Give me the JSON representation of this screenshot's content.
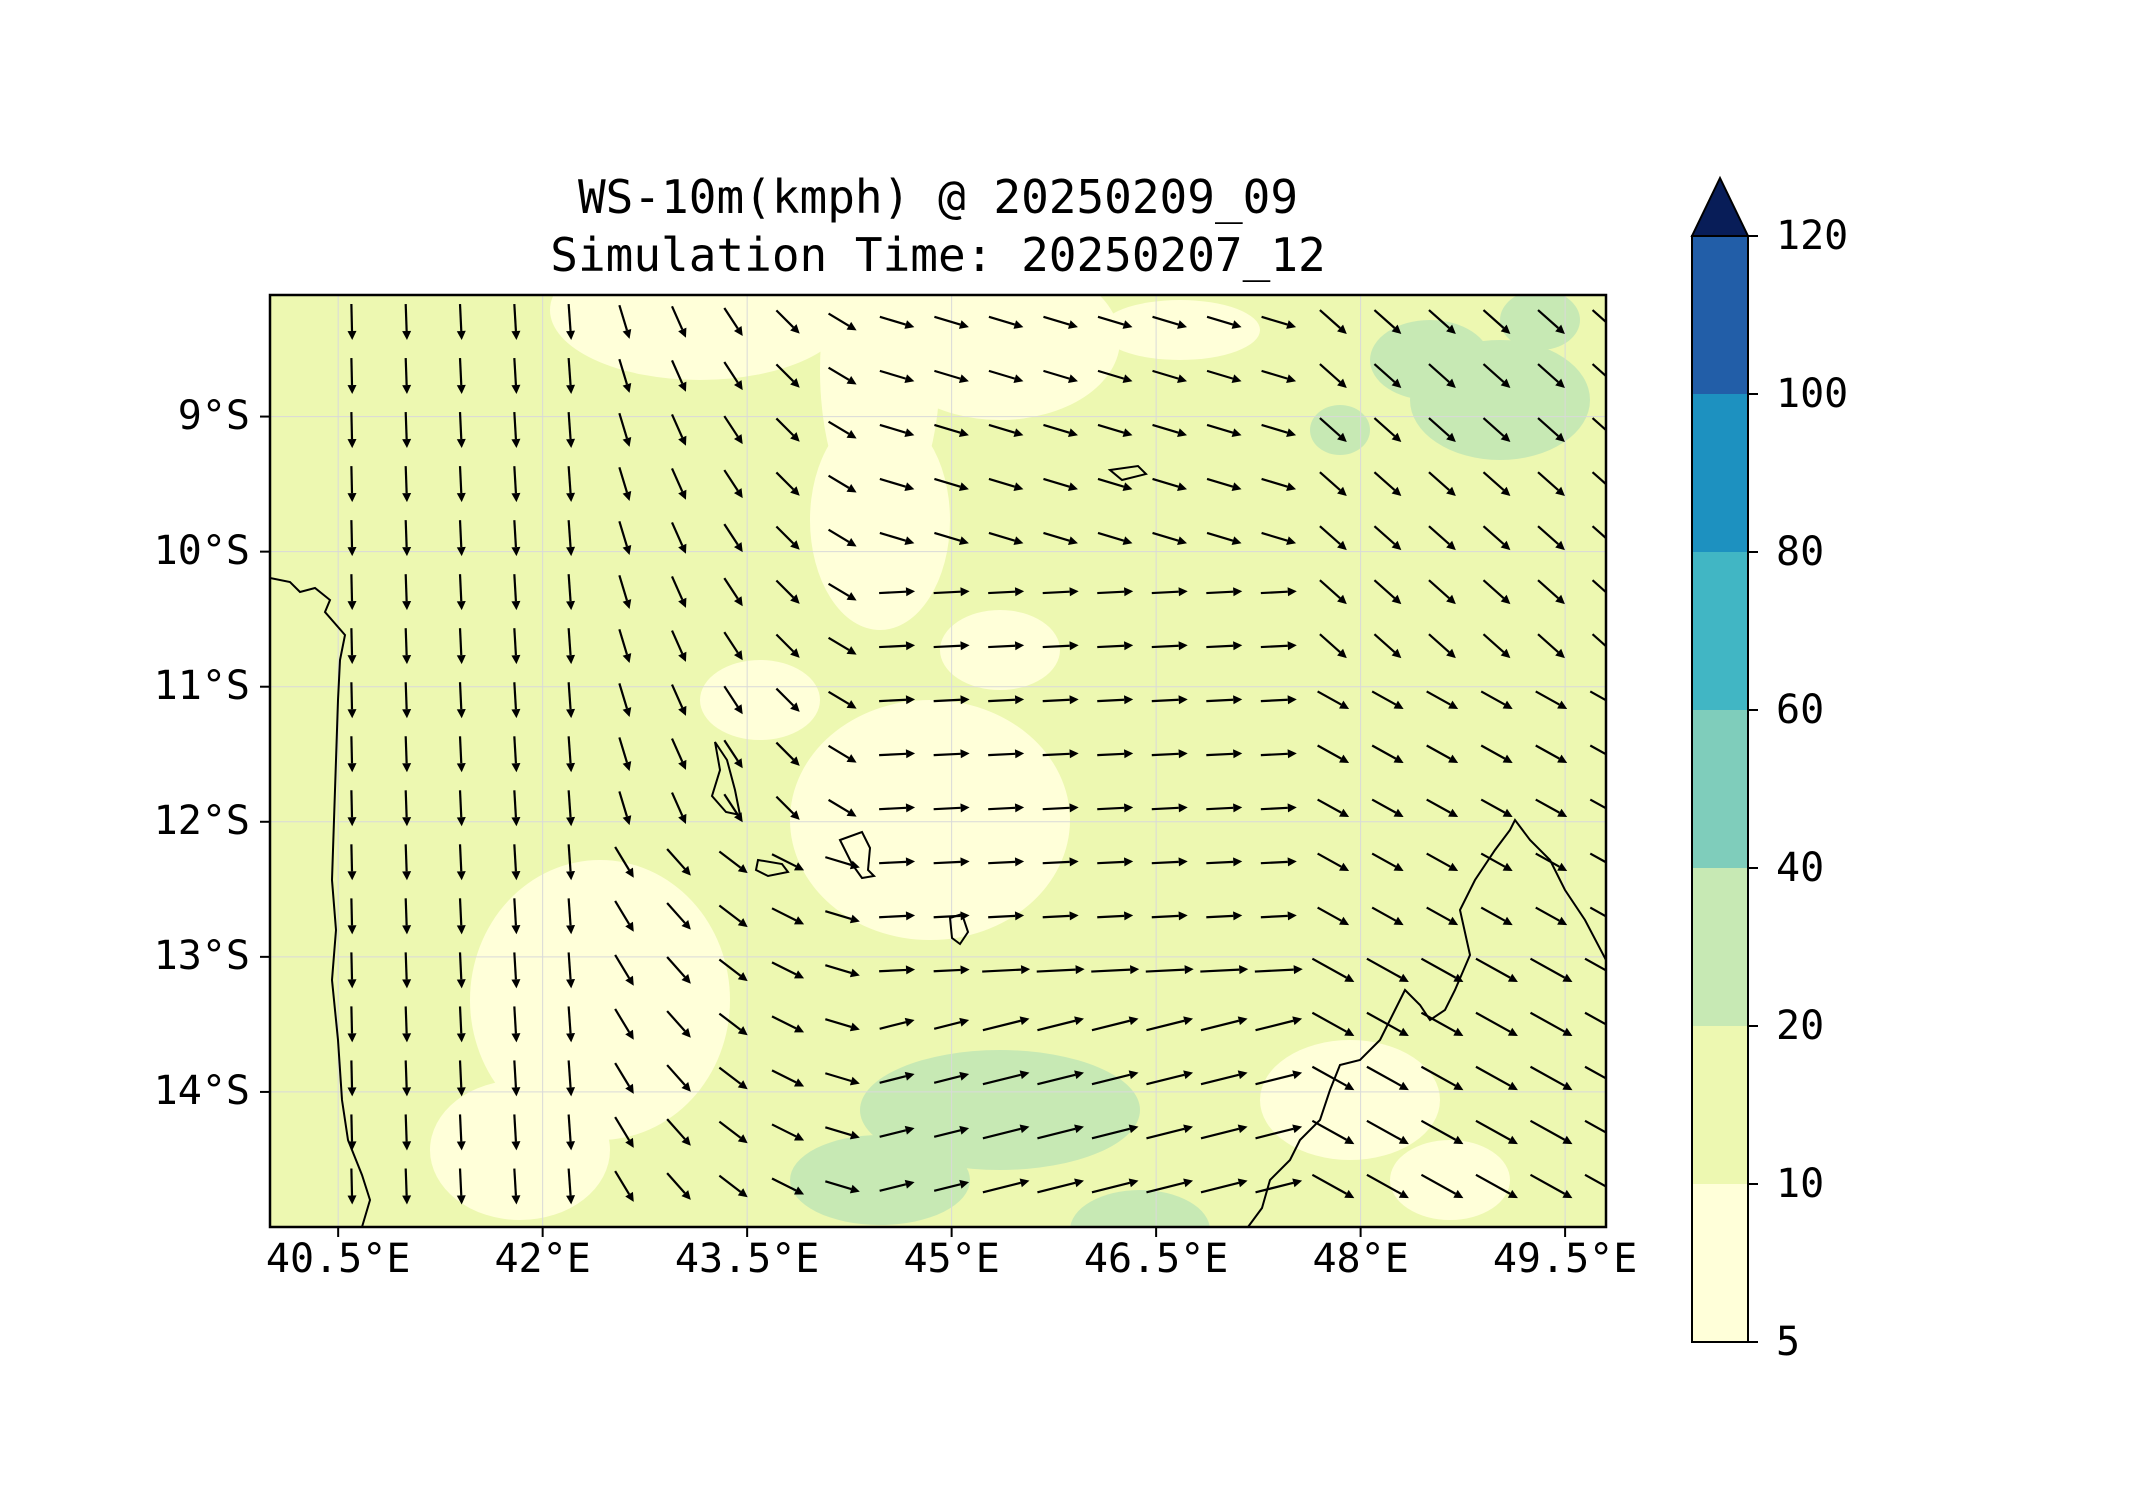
{
  "title": "WS-10m(kmph) @ 20250209_09",
  "subtitle": "Simulation Time: 20250207_12",
  "lat_ticks": [
    "9°S",
    "10°S",
    "11°S",
    "12°S",
    "13°S",
    "14°S"
  ],
  "lon_ticks": [
    "40.5°E",
    "42°E",
    "43.5°E",
    "45°E",
    "46.5°E",
    "48°E",
    "49.5°E"
  ],
  "colorbar": {
    "levels": [
      5,
      10,
      20,
      40,
      60,
      80,
      100,
      120
    ],
    "labels": [
      "5",
      "10",
      "20",
      "40",
      "60",
      "80",
      "100",
      "120"
    ],
    "colors": [
      "#ffffd9",
      "#edf8b1",
      "#c7e9b4",
      "#7fcdbb",
      "#41b6c4",
      "#1d91c0",
      "#225ea8",
      "#253494"
    ],
    "extend_color": "#081d58",
    "extend": "max"
  },
  "map": {
    "extent_lon": [
      40.0,
      49.8
    ],
    "extent_lat": [
      -8.1,
      -15.0
    ],
    "background_color": "#edf8b1",
    "light_color": "#ffffd9",
    "strong_color": "#c7e9b4",
    "coastline_color": "#000000",
    "gridline_color": "#d9d9d9"
  },
  "chart_data": {
    "type": "heatmap",
    "title": "WS-10m(kmph) @ 20250209_09",
    "subtitle": "Simulation Time: 20250207_12",
    "field": "WS-10m(kmph)",
    "units": "kmph",
    "xlim": [
      40.0,
      49.8
    ],
    "ylim": [
      -15.0,
      -8.1
    ],
    "x_ticks": [
      40.5,
      42,
      43.5,
      45,
      46.5,
      48,
      49.5
    ],
    "y_ticks": [
      -9,
      -10,
      -11,
      -12,
      -13,
      -14
    ],
    "levels": [
      5,
      10,
      20,
      40,
      60,
      80,
      100,
      120
    ],
    "grid": true,
    "wind_vectors": "quiver arrows at 0.4° spacing; southward flow in west, eastward flow in centre, south-eastward flow in north-east"
  }
}
